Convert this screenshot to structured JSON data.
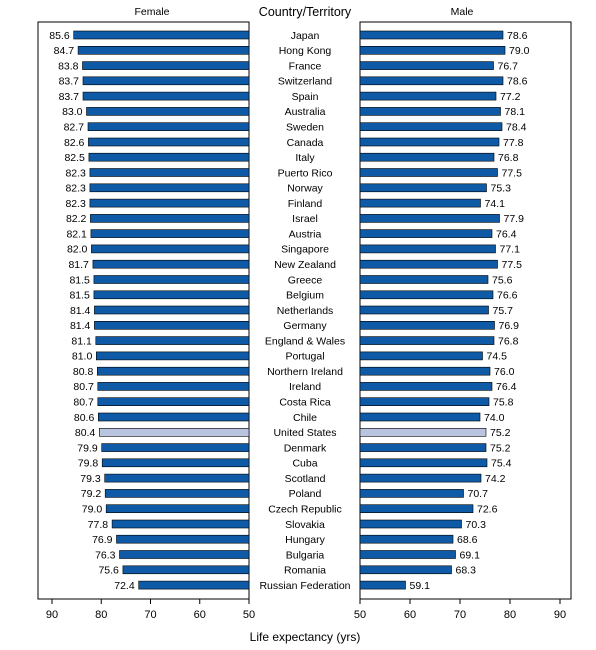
{
  "chart_data": {
    "type": "bar",
    "orientation": "horizontal",
    "layout": "back-to-back",
    "center_header": "Country/Territory",
    "xlabel": "Life expectancy (yrs)",
    "xlim": [
      50,
      90
    ],
    "grid": false,
    "colors": {
      "bar": "#0f5aa6",
      "highlight": "#b8c4e0",
      "bar_edge": "#000000"
    },
    "highlight_category": "United States",
    "female_ticks": [
      "90",
      "80",
      "70",
      "60",
      "50"
    ],
    "male_ticks": [
      "50",
      "60",
      "70",
      "80",
      "90"
    ],
    "categories": [
      "Japan",
      "Hong Kong",
      "France",
      "Switzerland",
      "Spain",
      "Australia",
      "Sweden",
      "Canada",
      "Italy",
      "Puerto Rico",
      "Norway",
      "Finland",
      "Israel",
      "Austria",
      "Singapore",
      "New Zealand",
      "Greece",
      "Belgium",
      "Netherlands",
      "Germany",
      "England & Wales",
      "Portugal",
      "Northern Ireland",
      "Ireland",
      "Costa Rica",
      "Chile",
      "United States",
      "Denmark",
      "Cuba",
      "Scotland",
      "Poland",
      "Czech Republic",
      "Slovakia",
      "Hungary",
      "Bulgaria",
      "Romania",
      "Russian Federation"
    ],
    "series": [
      {
        "name": "Female",
        "values": [
          85.6,
          84.7,
          83.8,
          83.7,
          83.7,
          83.0,
          82.7,
          82.6,
          82.5,
          82.3,
          82.3,
          82.3,
          82.2,
          82.1,
          82.0,
          81.7,
          81.5,
          81.5,
          81.4,
          81.4,
          81.1,
          81.0,
          80.8,
          80.7,
          80.7,
          80.6,
          80.4,
          79.9,
          79.8,
          79.3,
          79.2,
          79.0,
          77.8,
          76.9,
          76.3,
          75.6,
          72.4
        ],
        "labels": [
          "85.6",
          "84.7",
          "83.8",
          "83.7",
          "83.7",
          "83.0",
          "82.7",
          "82.6",
          "82.5",
          "82.3",
          "82.3",
          "82.3",
          "82.2",
          "82.1",
          "82.0",
          "81.7",
          "81.5",
          "81.5",
          "81.4",
          "81.4",
          "81.1",
          "81.0",
          "80.8",
          "80.7",
          "80.7",
          "80.6",
          "80.4",
          "79.9",
          "79.8",
          "79.3",
          "79.2",
          "79.0",
          "77.8",
          "76.9",
          "76.3",
          "75.6",
          "72.4"
        ]
      },
      {
        "name": "Male",
        "values": [
          78.6,
          79.0,
          76.7,
          78.6,
          77.2,
          78.1,
          78.4,
          77.8,
          76.8,
          77.5,
          75.3,
          74.1,
          77.9,
          76.4,
          77.1,
          77.5,
          75.6,
          76.6,
          75.7,
          76.9,
          76.8,
          74.5,
          76.0,
          76.4,
          75.8,
          74.0,
          75.2,
          75.2,
          75.4,
          74.2,
          70.7,
          72.6,
          70.3,
          68.6,
          69.1,
          68.3,
          59.1
        ],
        "labels": [
          "78.6",
          "79.0",
          "76.7",
          "78.6",
          "77.2",
          "78.1",
          "78.4",
          "77.8",
          "76.8",
          "77.5",
          "75.3",
          "74.1",
          "77.9",
          "76.4",
          "77.1",
          "77.5",
          "75.6",
          "76.6",
          "75.7",
          "76.9",
          "76.8",
          "74.5",
          "76.0",
          "76.4",
          "75.8",
          "74.0",
          "75.2",
          "75.2",
          "75.4",
          "74.2",
          "70.7",
          "72.6",
          "70.3",
          "68.6",
          "69.1",
          "68.3",
          "59.1"
        ]
      }
    ]
  }
}
